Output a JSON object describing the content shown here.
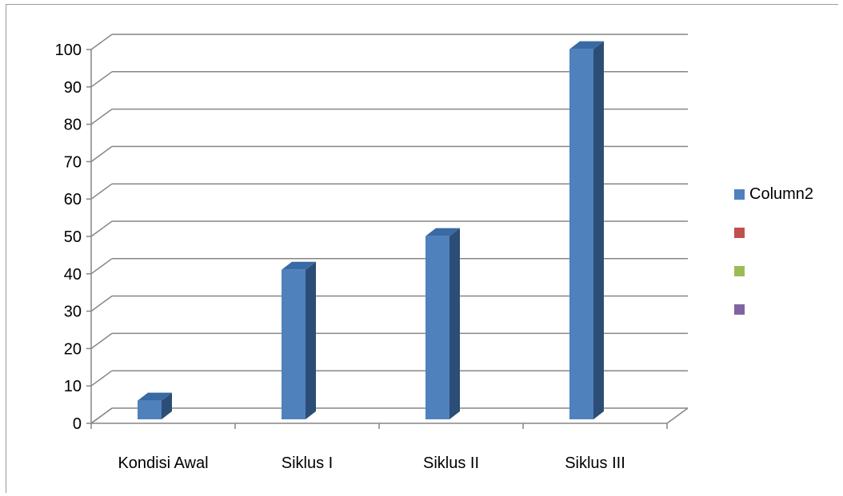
{
  "chart_data": {
    "type": "bar",
    "categories": [
      "Kondisi Awal",
      "Siklus I",
      "Siklus II",
      "Siklus III"
    ],
    "series": [
      {
        "name": "Column2",
        "values": [
          5,
          40,
          49,
          99
        ],
        "color": "#4f81bd"
      }
    ],
    "ylim": [
      0,
      100
    ],
    "yticks": [
      "0",
      "10",
      "20",
      "30",
      "40",
      "50",
      "60",
      "70",
      "80",
      "90",
      "100"
    ],
    "grid": true,
    "style": "3d-column",
    "legend_position": "right"
  },
  "legend": [
    {
      "label": "Column2",
      "color": "#4f81bd"
    },
    {
      "label": "",
      "color": "#c0504d"
    },
    {
      "label": "",
      "color": "#9bbb59"
    },
    {
      "label": "",
      "color": "#8064a2"
    }
  ]
}
